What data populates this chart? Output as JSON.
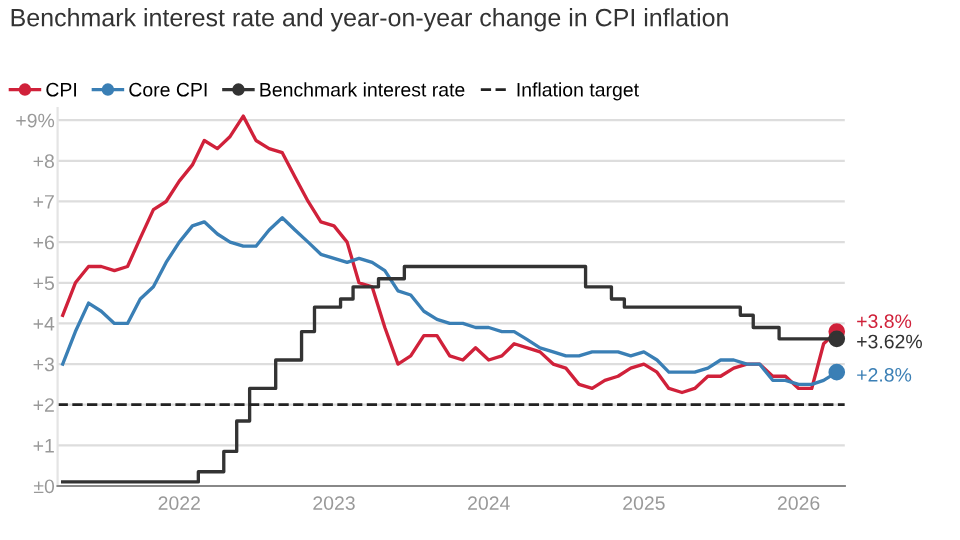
{
  "chart_data": {
    "type": "line",
    "title": "Benchmark interest rate and year-on-year change in CPI inflation",
    "x": [
      "2021-04",
      "2021-05",
      "2021-06",
      "2021-07",
      "2021-08",
      "2021-09",
      "2021-10",
      "2021-11",
      "2021-12",
      "2022-01",
      "2022-02",
      "2022-03",
      "2022-04",
      "2022-05",
      "2022-06",
      "2022-07",
      "2022-08",
      "2022-09",
      "2022-10",
      "2022-11",
      "2022-12",
      "2023-01",
      "2023-02",
      "2023-03",
      "2023-04",
      "2023-05",
      "2023-06",
      "2023-07",
      "2023-08",
      "2023-09",
      "2023-10",
      "2023-11",
      "2023-12",
      "2024-01",
      "2024-02",
      "2024-03",
      "2024-04",
      "2024-05",
      "2024-06",
      "2024-07",
      "2024-08",
      "2024-09",
      "2024-10",
      "2024-11",
      "2024-12",
      "2025-01",
      "2025-02",
      "2025-03",
      "2025-04",
      "2025-05",
      "2025-06",
      "2025-07",
      "2025-08",
      "2025-09",
      "2025-10",
      "2025-11",
      "2025-12",
      "2026-01",
      "2026-02",
      "2026-03",
      "2026-04"
    ],
    "series": [
      {
        "name": "CPI",
        "color": "#d0213a",
        "values": [
          4.2,
          5.0,
          5.4,
          5.4,
          5.3,
          5.4,
          6.1,
          6.8,
          7.0,
          7.5,
          7.9,
          8.5,
          8.3,
          8.6,
          9.1,
          8.5,
          8.3,
          8.2,
          7.6,
          7.0,
          6.5,
          6.4,
          6.0,
          5.0,
          4.9,
          3.9,
          3.0,
          3.2,
          3.7,
          3.7,
          3.2,
          3.1,
          3.4,
          3.1,
          3.2,
          3.5,
          3.4,
          3.3,
          3.0,
          2.9,
          2.5,
          2.4,
          2.6,
          2.7,
          2.9,
          3.0,
          2.8,
          2.4,
          2.3,
          2.4,
          2.7,
          2.7,
          2.9,
          3.0,
          3.0,
          2.7,
          2.7,
          2.4,
          2.4,
          3.5,
          3.8
        ],
        "value_labels": [
          null,
          null,
          null,
          null,
          null,
          null,
          null,
          null,
          null,
          null,
          null,
          null,
          null,
          null,
          null,
          null,
          null,
          null,
          null,
          null,
          null,
          null,
          null,
          null,
          null,
          null,
          null,
          null,
          null,
          null,
          null,
          null,
          null,
          null,
          null,
          null,
          null,
          null,
          null,
          null,
          null,
          null,
          null,
          null,
          null,
          null,
          null,
          null,
          null,
          null,
          null,
          null,
          null,
          null,
          null,
          null,
          null,
          null,
          null,
          null,
          "+3.8%"
        ]
      },
      {
        "name": "Core CPI",
        "color": "#3a7fb5",
        "values": [
          3.0,
          3.8,
          4.5,
          4.3,
          4.0,
          4.0,
          4.6,
          4.9,
          5.5,
          6.0,
          6.4,
          6.5,
          6.2,
          6.0,
          5.9,
          5.9,
          6.3,
          6.6,
          6.3,
          6.0,
          5.7,
          5.6,
          5.5,
          5.6,
          5.5,
          5.3,
          4.8,
          4.7,
          4.3,
          4.1,
          4.0,
          4.0,
          3.9,
          3.9,
          3.8,
          3.8,
          3.6,
          3.4,
          3.3,
          3.2,
          3.2,
          3.3,
          3.3,
          3.3,
          3.2,
          3.3,
          3.1,
          2.8,
          2.8,
          2.8,
          2.9,
          3.1,
          3.1,
          3.0,
          3.0,
          2.6,
          2.6,
          2.5,
          2.5,
          2.6,
          2.8
        ],
        "value_labels": [
          null,
          null,
          null,
          null,
          null,
          null,
          null,
          null,
          null,
          null,
          null,
          null,
          null,
          null,
          null,
          null,
          null,
          null,
          null,
          null,
          null,
          null,
          null,
          null,
          null,
          null,
          null,
          null,
          null,
          null,
          null,
          null,
          null,
          null,
          null,
          null,
          null,
          null,
          null,
          null,
          null,
          null,
          null,
          null,
          null,
          null,
          null,
          null,
          null,
          null,
          null,
          null,
          null,
          null,
          null,
          null,
          null,
          null,
          null,
          null,
          "+2.8%"
        ]
      },
      {
        "name": "Benchmark interest rate",
        "type": "step",
        "color": "#333333",
        "values": [
          0.1,
          0.1,
          0.1,
          0.1,
          0.1,
          0.1,
          0.1,
          0.1,
          0.1,
          0.1,
          0.1,
          0.35,
          0.35,
          0.85,
          1.6,
          2.4,
          2.4,
          3.1,
          3.1,
          3.8,
          4.4,
          4.4,
          4.6,
          4.9,
          4.9,
          5.1,
          5.1,
          5.4,
          5.4,
          5.4,
          5.4,
          5.4,
          5.4,
          5.4,
          5.4,
          5.4,
          5.4,
          5.4,
          5.4,
          5.4,
          5.4,
          4.9,
          4.9,
          4.6,
          4.4,
          4.4,
          4.4,
          4.4,
          4.4,
          4.4,
          4.4,
          4.4,
          4.4,
          4.2,
          3.9,
          3.9,
          3.62,
          3.62,
          3.62,
          3.62,
          3.62
        ],
        "value_labels": [
          null,
          null,
          null,
          null,
          null,
          null,
          null,
          null,
          null,
          null,
          null,
          null,
          null,
          null,
          null,
          null,
          null,
          null,
          null,
          null,
          null,
          null,
          null,
          null,
          null,
          null,
          null,
          null,
          null,
          null,
          null,
          null,
          null,
          null,
          null,
          null,
          null,
          null,
          null,
          null,
          null,
          null,
          null,
          null,
          null,
          null,
          null,
          null,
          null,
          null,
          null,
          null,
          null,
          null,
          null,
          null,
          null,
          null,
          null,
          null,
          "+3.62%"
        ]
      }
    ],
    "ref_lines": [
      {
        "axis": "y",
        "value": 2,
        "label": "Inflation target",
        "color": "#222222",
        "line_style": "dashed"
      }
    ],
    "xlim": [
      "2021-03-20",
      "2026-04-20"
    ],
    "xticks": [
      {
        "value": "2022-01-01",
        "label": "2022"
      },
      {
        "value": "2023-01-01",
        "label": "2023"
      },
      {
        "value": "2024-01-01",
        "label": "2024"
      },
      {
        "value": "2025-01-01",
        "label": "2025"
      },
      {
        "value": "2026-01-01",
        "label": "2026"
      }
    ],
    "ylim": [
      0,
      9.3
    ],
    "yticks": [
      {
        "value": 0,
        "label": "±0"
      },
      {
        "value": 1,
        "label": "+1"
      },
      {
        "value": 2,
        "label": "+2"
      },
      {
        "value": 3,
        "label": "+3"
      },
      {
        "value": 4,
        "label": "+4"
      },
      {
        "value": 5,
        "label": "+5"
      },
      {
        "value": 6,
        "label": "+6"
      },
      {
        "value": 7,
        "label": "+7"
      },
      {
        "value": 8,
        "label": "+8"
      },
      {
        "value": 9,
        "label": "+9%"
      }
    ],
    "grid": "y",
    "legend": "top left"
  }
}
